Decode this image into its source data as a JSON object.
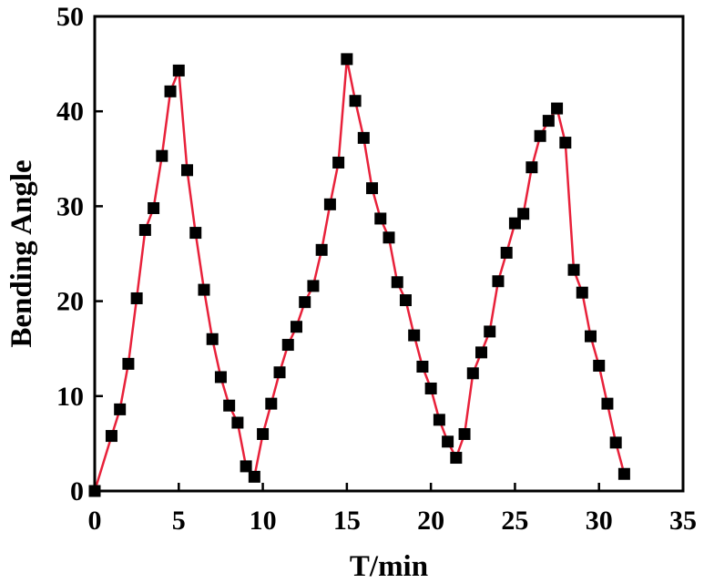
{
  "chart_data": {
    "type": "line",
    "title": "",
    "xlabel": "T/min",
    "ylabel": "Bending Angle",
    "xlim": [
      0,
      35
    ],
    "ylim": [
      0,
      50
    ],
    "xticks": [
      0,
      5,
      10,
      15,
      20,
      25,
      30,
      35
    ],
    "yticks": [
      0,
      10,
      20,
      30,
      40,
      50
    ],
    "grid": false,
    "legend": "none",
    "marker": "square",
    "colors": {
      "line": "#e8213a",
      "marker": "#000000",
      "axis": "#000000"
    },
    "series": [
      {
        "x": [
          0,
          1,
          1.5,
          2,
          2.5,
          3,
          3.5,
          4,
          4.5,
          5,
          5.5,
          6,
          6.5,
          7,
          7.5,
          8,
          8.5,
          9,
          9.5,
          10,
          10.5,
          11,
          11.5,
          12,
          12.5,
          13,
          13.5,
          14,
          14.5,
          15,
          15.5,
          16,
          16.5,
          17,
          17.5,
          18,
          18.5,
          19,
          19.5,
          20,
          20.5,
          21,
          21.5,
          22,
          22.5,
          23,
          23.5,
          24,
          24.5,
          25,
          25.5,
          26,
          26.5,
          27,
          27.5,
          28,
          28.5,
          29,
          29.5,
          30,
          30.5,
          31,
          31.5
        ],
        "y": [
          0,
          5.8,
          8.6,
          13.4,
          20.3,
          27.5,
          29.8,
          35.3,
          42.1,
          44.3,
          33.8,
          27.2,
          21.2,
          16,
          12,
          9,
          7.2,
          2.6,
          1.5,
          6,
          9.2,
          12.5,
          15.4,
          17.3,
          19.9,
          21.6,
          25.4,
          30.2,
          34.6,
          45.5,
          41.1,
          37.2,
          31.9,
          28.7,
          26.7,
          22,
          20.1,
          16.4,
          13.1,
          10.8,
          7.5,
          5.2,
          3.5,
          6,
          12.4,
          14.6,
          16.8,
          22.1,
          25.1,
          28.2,
          29.2,
          34.1,
          37.4,
          39,
          40.3,
          36.7,
          23.3,
          20.9,
          16.3,
          13.2,
          9.2,
          5.1,
          1.8
        ]
      }
    ]
  }
}
